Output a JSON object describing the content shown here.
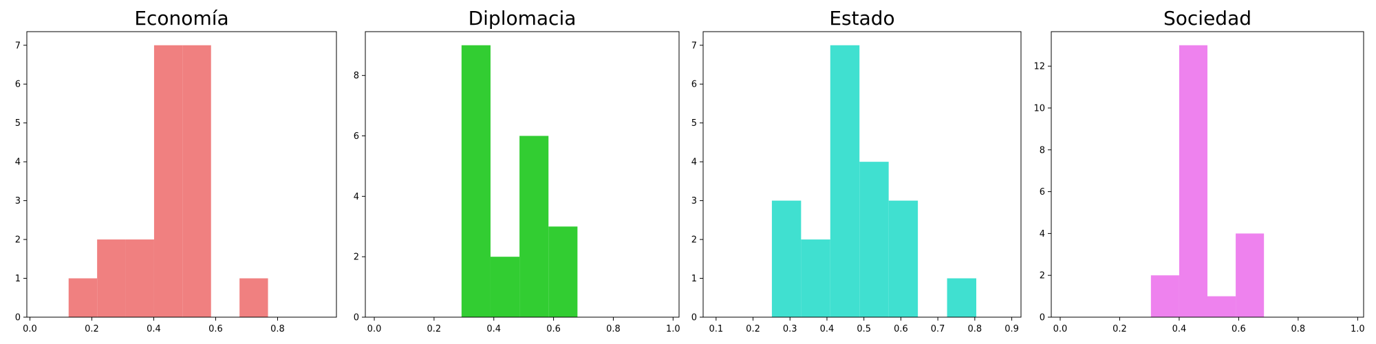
{
  "chart_data": [
    {
      "type": "bar",
      "title": "Economía",
      "color": "#f08080",
      "xlim": [
        -0.01,
        0.99
      ],
      "ylim": [
        0,
        7.35
      ],
      "xticks": [
        0.0,
        0.2,
        0.4,
        0.6,
        0.8
      ],
      "xtick_labels": [
        "0.0",
        "0.2",
        "0.4",
        "0.6",
        "0.8"
      ],
      "yticks": [
        0,
        1,
        2,
        3,
        4,
        5,
        6,
        7
      ],
      "ytick_labels": [
        "0",
        "1",
        "2",
        "3",
        "4",
        "5",
        "6",
        "7"
      ],
      "bins": [
        {
          "x0": 0.125,
          "x1": 0.217,
          "count": 1
        },
        {
          "x0": 0.217,
          "x1": 0.309,
          "count": 2
        },
        {
          "x0": 0.309,
          "x1": 0.401,
          "count": 2
        },
        {
          "x0": 0.401,
          "x1": 0.493,
          "count": 7
        },
        {
          "x0": 0.493,
          "x1": 0.585,
          "count": 7
        },
        {
          "x0": 0.677,
          "x1": 0.769,
          "count": 1
        }
      ]
    },
    {
      "type": "bar",
      "title": "Diplomacia",
      "color": "#32cd32",
      "xlim": [
        -0.03,
        1.02
      ],
      "ylim": [
        0,
        9.45
      ],
      "xticks": [
        0.0,
        0.2,
        0.4,
        0.6,
        0.8,
        1.0
      ],
      "xtick_labels": [
        "0.0",
        "0.2",
        "0.4",
        "0.6",
        "0.8",
        "1.0"
      ],
      "yticks": [
        0,
        2,
        4,
        6,
        8
      ],
      "ytick_labels": [
        "0",
        "2",
        "4",
        "6",
        "8"
      ],
      "bins": [
        {
          "x0": 0.292,
          "x1": 0.389,
          "count": 9
        },
        {
          "x0": 0.389,
          "x1": 0.486,
          "count": 2
        },
        {
          "x0": 0.486,
          "x1": 0.583,
          "count": 6
        },
        {
          "x0": 0.583,
          "x1": 0.68,
          "count": 3
        }
      ]
    },
    {
      "type": "bar",
      "title": "Estado",
      "color": "#40e0d0",
      "xlim": [
        0.065,
        0.925
      ],
      "ylim": [
        0,
        7.35
      ],
      "xticks": [
        0.1,
        0.2,
        0.3,
        0.4,
        0.5,
        0.6,
        0.7,
        0.8,
        0.9
      ],
      "xtick_labels": [
        "0.1",
        "0.2",
        "0.3",
        "0.4",
        "0.5",
        "0.6",
        "0.7",
        "0.8",
        "0.9"
      ],
      "yticks": [
        0,
        1,
        2,
        3,
        4,
        5,
        6,
        7
      ],
      "ytick_labels": [
        "0",
        "1",
        "2",
        "3",
        "4",
        "5",
        "6",
        "7"
      ],
      "bins": [
        {
          "x0": 0.251,
          "x1": 0.33,
          "count": 3
        },
        {
          "x0": 0.33,
          "x1": 0.409,
          "count": 2
        },
        {
          "x0": 0.409,
          "x1": 0.488,
          "count": 7
        },
        {
          "x0": 0.488,
          "x1": 0.567,
          "count": 4
        },
        {
          "x0": 0.567,
          "x1": 0.646,
          "count": 3
        },
        {
          "x0": 0.725,
          "x1": 0.804,
          "count": 1
        }
      ]
    },
    {
      "type": "bar",
      "title": "Sociedad",
      "color": "#ee82ee",
      "xlim": [
        -0.03,
        1.02
      ],
      "ylim": [
        0,
        13.65
      ],
      "xticks": [
        0.0,
        0.2,
        0.4,
        0.6,
        0.8,
        1.0
      ],
      "xtick_labels": [
        "0.0",
        "0.2",
        "0.4",
        "0.6",
        "0.8",
        "1.0"
      ],
      "yticks": [
        0,
        2,
        4,
        6,
        8,
        10,
        12
      ],
      "ytick_labels": [
        "0",
        "2",
        "4",
        "6",
        "8",
        "10",
        "12"
      ],
      "bins": [
        {
          "x0": 0.305,
          "x1": 0.4,
          "count": 2
        },
        {
          "x0": 0.4,
          "x1": 0.495,
          "count": 13
        },
        {
          "x0": 0.495,
          "x1": 0.59,
          "count": 1
        },
        {
          "x0": 0.59,
          "x1": 0.685,
          "count": 4
        }
      ]
    }
  ]
}
